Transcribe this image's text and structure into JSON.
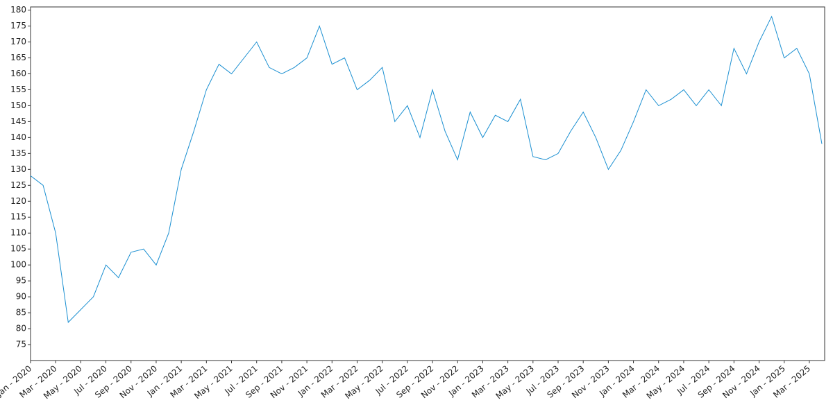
{
  "chart_data": {
    "type": "line",
    "x": [
      "2020-01",
      "2020-02",
      "2020-03",
      "2020-04",
      "2020-05",
      "2020-06",
      "2020-07",
      "2020-08",
      "2020-09",
      "2020-10",
      "2020-11",
      "2020-12",
      "2021-01",
      "2021-02",
      "2021-03",
      "2021-04",
      "2021-05",
      "2021-06",
      "2021-07",
      "2021-08",
      "2021-09",
      "2021-10",
      "2021-11",
      "2021-12",
      "2022-01",
      "2022-02",
      "2022-03",
      "2022-04",
      "2022-05",
      "2022-06",
      "2022-07",
      "2022-08",
      "2022-09",
      "2022-10",
      "2022-11",
      "2022-12",
      "2023-01",
      "2023-02",
      "2023-03",
      "2023-04",
      "2023-05",
      "2023-06",
      "2023-07",
      "2023-08",
      "2023-09",
      "2023-10",
      "2023-11",
      "2023-12",
      "2024-01",
      "2024-02",
      "2024-03",
      "2024-04",
      "2024-05",
      "2024-06",
      "2024-07",
      "2024-08",
      "2024-09",
      "2024-10",
      "2024-11",
      "2024-12",
      "2025-01",
      "2025-02",
      "2025-03",
      "2025-04"
    ],
    "series": [
      {
        "color": "#1a8fd1",
        "values": [
          128,
          125,
          110,
          82,
          86,
          90,
          100,
          96,
          104,
          105,
          100,
          110,
          130,
          142,
          155,
          163,
          160,
          165,
          170,
          162,
          160,
          162,
          165,
          175,
          163,
          165,
          155,
          158,
          162,
          145,
          150,
          140,
          155,
          142,
          133,
          148,
          140,
          147,
          145,
          152,
          134,
          133,
          135,
          142,
          148,
          140,
          130,
          136,
          145,
          155,
          150,
          152,
          155,
          150,
          155,
          150,
          168,
          160,
          170,
          178,
          165,
          168,
          160,
          138
        ]
      }
    ],
    "xlim": [
      "2020-01",
      "2025-04"
    ],
    "xticks": [
      {
        "value": "2020-01",
        "label": "Jan - 2020"
      },
      {
        "value": "2020-03",
        "label": "Mar - 2020"
      },
      {
        "value": "2020-05",
        "label": "May - 2020"
      },
      {
        "value": "2020-07",
        "label": "Jul - 2020"
      },
      {
        "value": "2020-09",
        "label": "Sep - 2020"
      },
      {
        "value": "2020-11",
        "label": "Nov - 2020"
      },
      {
        "value": "2021-01",
        "label": "Jan - 2021"
      },
      {
        "value": "2021-03",
        "label": "Mar - 2021"
      },
      {
        "value": "2021-05",
        "label": "May - 2021"
      },
      {
        "value": "2021-07",
        "label": "Jul - 2021"
      },
      {
        "value": "2021-09",
        "label": "Sep - 2021"
      },
      {
        "value": "2021-11",
        "label": "Nov - 2021"
      },
      {
        "value": "2022-01",
        "label": "Jan - 2022"
      },
      {
        "value": "2022-03",
        "label": "Mar - 2022"
      },
      {
        "value": "2022-05",
        "label": "May - 2022"
      },
      {
        "value": "2022-07",
        "label": "Jul - 2022"
      },
      {
        "value": "2022-09",
        "label": "Sep - 2022"
      },
      {
        "value": "2022-11",
        "label": "Nov - 2022"
      },
      {
        "value": "2023-01",
        "label": "Jan - 2023"
      },
      {
        "value": "2023-03",
        "label": "Mar - 2023"
      },
      {
        "value": "2023-05",
        "label": "May - 2023"
      },
      {
        "value": "2023-07",
        "label": "Jul - 2023"
      },
      {
        "value": "2023-09",
        "label": "Sep - 2023"
      },
      {
        "value": "2023-11",
        "label": "Nov - 2023"
      },
      {
        "value": "2024-01",
        "label": "Jan - 2024"
      },
      {
        "value": "2024-03",
        "label": "Mar - 2024"
      },
      {
        "value": "2024-05",
        "label": "May - 2024"
      },
      {
        "value": "2024-07",
        "label": "Jul - 2024"
      },
      {
        "value": "2024-09",
        "label": "Sep - 2024"
      },
      {
        "value": "2024-11",
        "label": "Nov - 2024"
      },
      {
        "value": "2025-01",
        "label": "Jan - 2025"
      },
      {
        "value": "2025-03",
        "label": "Mar - 2025"
      }
    ],
    "ylim": [
      70,
      181
    ],
    "yticks": [
      75,
      80,
      85,
      90,
      95,
      100,
      105,
      110,
      115,
      120,
      125,
      130,
      135,
      140,
      145,
      150,
      155,
      160,
      165,
      170,
      175,
      180
    ],
    "grid": false
  }
}
